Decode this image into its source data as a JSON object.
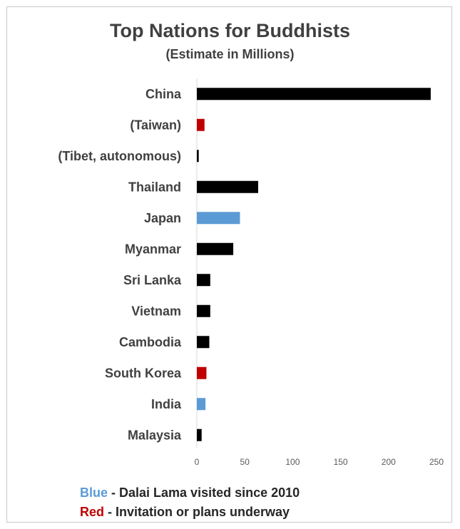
{
  "chart_data": {
    "type": "bar",
    "orientation": "horizontal",
    "title": "Top Nations for Buddhists",
    "subtitle": "(Estimate in Millions)",
    "categories": [
      "China",
      "(Taiwan)",
      "(Tibet, autonomous)",
      "Thailand",
      "Japan",
      "Myanmar",
      "Sri Lanka",
      "Vietnam",
      "Cambodia",
      "South Korea",
      "India",
      "Malaysia"
    ],
    "values": [
      244,
      8,
      2,
      64,
      45,
      38,
      14,
      14,
      13,
      10,
      9,
      5
    ],
    "bar_colors": [
      "#000000",
      "#c00000",
      "#000000",
      "#000000",
      "#5b9bd5",
      "#000000",
      "#000000",
      "#000000",
      "#000000",
      "#c00000",
      "#5b9bd5",
      "#000000"
    ],
    "xlim": [
      0,
      250
    ],
    "x_ticks": [
      "0",
      "50",
      "100",
      "150",
      "200",
      "250"
    ],
    "grid": false
  },
  "legend": {
    "blue_key": "Blue",
    "blue_text": " - Dalai Lama visited since 2010",
    "red_key": "Red",
    "red_text": "  - Invitation or plans underway",
    "blue_color": "#5b9bd5",
    "red_color": "#c00000"
  }
}
